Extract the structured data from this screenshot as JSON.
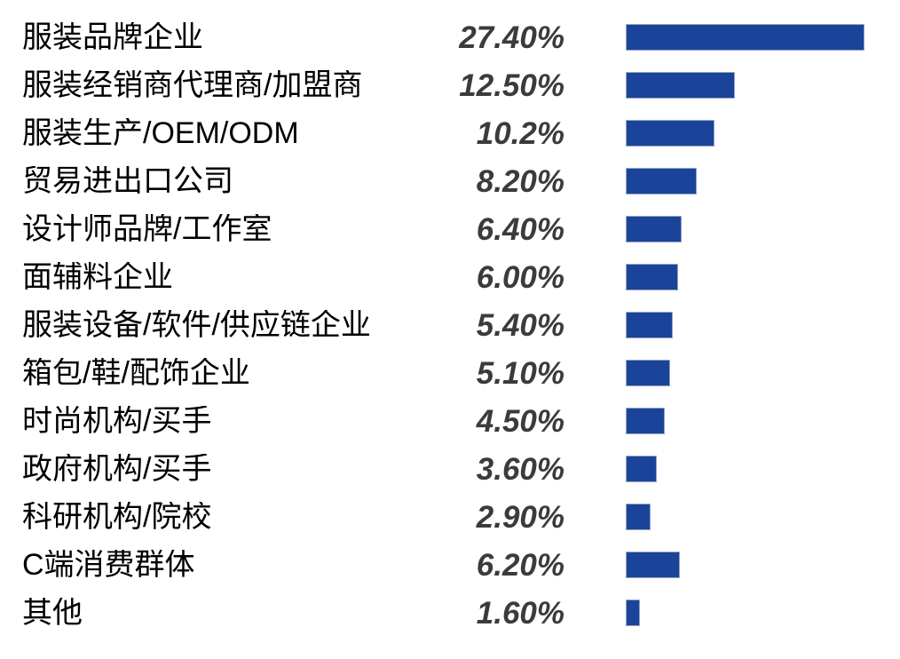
{
  "chart_data": {
    "type": "bar",
    "orientation": "horizontal",
    "title": "",
    "xlabel": "",
    "ylabel": "",
    "grid": false,
    "legend": false,
    "xlim": [
      0,
      28
    ],
    "categories": [
      "服装品牌企业",
      "服装经销商代理商/加盟商",
      "服装生产/OEM/ODM",
      "贸易进出口公司",
      "设计师品牌/工作室",
      "面辅料企业",
      "服装设备/软件/供应链企业",
      "箱包/鞋/配饰企业",
      "时尚机构/买手",
      "政府机构/买手",
      "科研机构/院校",
      "C端消费群体",
      "其他"
    ],
    "values": [
      27.4,
      12.5,
      10.2,
      8.2,
      6.4,
      6.0,
      5.4,
      5.1,
      4.5,
      3.6,
      2.9,
      6.2,
      1.6
    ],
    "value_labels": [
      "27.40%",
      "12.50%",
      "10.2%",
      "8.20%",
      "6.40%",
      "6.00%",
      "5.40%",
      "5.10%",
      "4.50%",
      "3.60%",
      "2.90%",
      "6.20%",
      "1.60%"
    ],
    "bar_color": "#1A4499",
    "label_color": "#000000",
    "value_color": "#3b3b3b"
  }
}
